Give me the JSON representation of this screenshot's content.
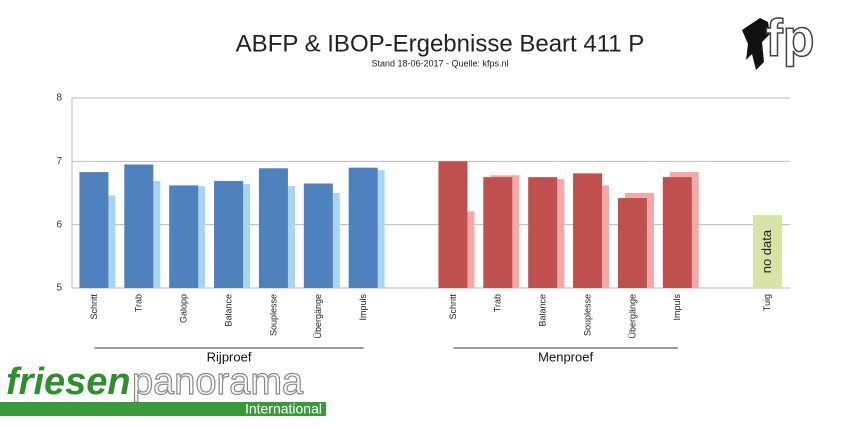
{
  "chart_data": {
    "type": "bar",
    "title": "ABFP & IBOP-Ergebnisse Beart 411 P",
    "subtitle": "Stand 18-06-2017 - Quelle: kfps.nl",
    "categories": [
      "Schritt",
      "Trab",
      "Galopp",
      "Balance",
      "Souplesse",
      "Übergänge",
      "Impuls",
      null,
      "Schritt",
      "Trab",
      "Balance",
      "Souplesse",
      "Übergänge",
      "Impuls",
      null,
      "Tuig"
    ],
    "series": [
      {
        "color": "#4f81bd",
        "values": [
          6.83,
          6.95,
          6.62,
          6.69,
          6.89,
          6.65,
          6.9,
          null,
          null,
          null,
          null,
          null,
          null,
          null,
          null,
          null
        ]
      },
      {
        "color": "#a9d4f3",
        "values": [
          6.46,
          6.69,
          6.61,
          6.64,
          6.61,
          6.5,
          6.86,
          null,
          null,
          null,
          null,
          null,
          null,
          null,
          null,
          null
        ]
      },
      {
        "color": "#c0504d",
        "values": [
          null,
          null,
          null,
          null,
          null,
          null,
          null,
          null,
          7.0,
          6.75,
          6.75,
          6.81,
          6.42,
          6.75,
          null,
          null
        ]
      },
      {
        "color": "#f4a9a9",
        "values": [
          null,
          null,
          null,
          null,
          null,
          null,
          null,
          null,
          6.21,
          6.78,
          6.72,
          6.62,
          6.5,
          6.83,
          null,
          null
        ]
      },
      {
        "color": "#d7e4a5",
        "values": [
          null,
          null,
          null,
          null,
          null,
          null,
          null,
          null,
          null,
          null,
          null,
          null,
          null,
          null,
          null,
          6.15
        ]
      }
    ],
    "annotation": "no data",
    "group_labels": [
      "Rijproef",
      "Menproef"
    ],
    "ylim": [
      5,
      8
    ],
    "yticks": [
      5,
      6,
      7,
      8
    ],
    "grid": true
  },
  "branding": {
    "logo_top": "fp",
    "logo_left_1": "friesen",
    "logo_left_2": "panorama",
    "logo_left_3": "International"
  }
}
